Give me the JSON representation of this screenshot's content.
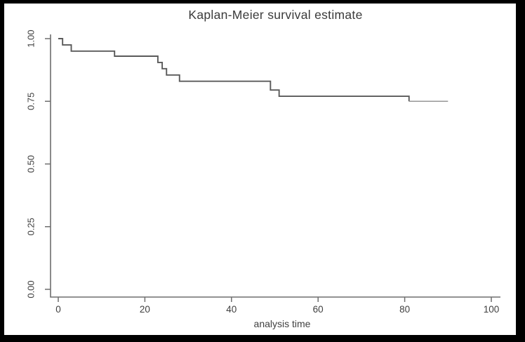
{
  "figure": {
    "frame_color": "#000000",
    "background_color": "#ffffff"
  },
  "chart_data": {
    "type": "line",
    "subtype": "kaplan-meier-step",
    "title": "Kaplan-Meier survival estimate",
    "xlabel": "analysis time",
    "ylabel": "",
    "xlim": [
      0,
      100
    ],
    "ylim": [
      0.0,
      1.0
    ],
    "xticks": [
      "0",
      "20",
      "40",
      "60",
      "80",
      "100"
    ],
    "yticks": [
      "0.00",
      "0.25",
      "0.50",
      "0.75",
      "1.00"
    ],
    "grid": false,
    "legend_position": "none",
    "series": [
      {
        "name": "Kaplan-Meier survival estimate",
        "times": [
          0,
          1,
          3,
          13,
          23,
          24,
          25,
          28,
          49,
          51,
          81
        ],
        "survival": [
          1.0,
          0.975,
          0.95,
          0.93,
          0.905,
          0.88,
          0.855,
          0.83,
          0.795,
          0.77,
          0.75
        ],
        "end_time": 90
      }
    ],
    "colors": {
      "curve": "#5a5a5a",
      "curve_tail": "#979797",
      "axis": "#6e6e6e",
      "tick_text": "#3f3f3f",
      "title_text": "#3a3a3a"
    }
  }
}
